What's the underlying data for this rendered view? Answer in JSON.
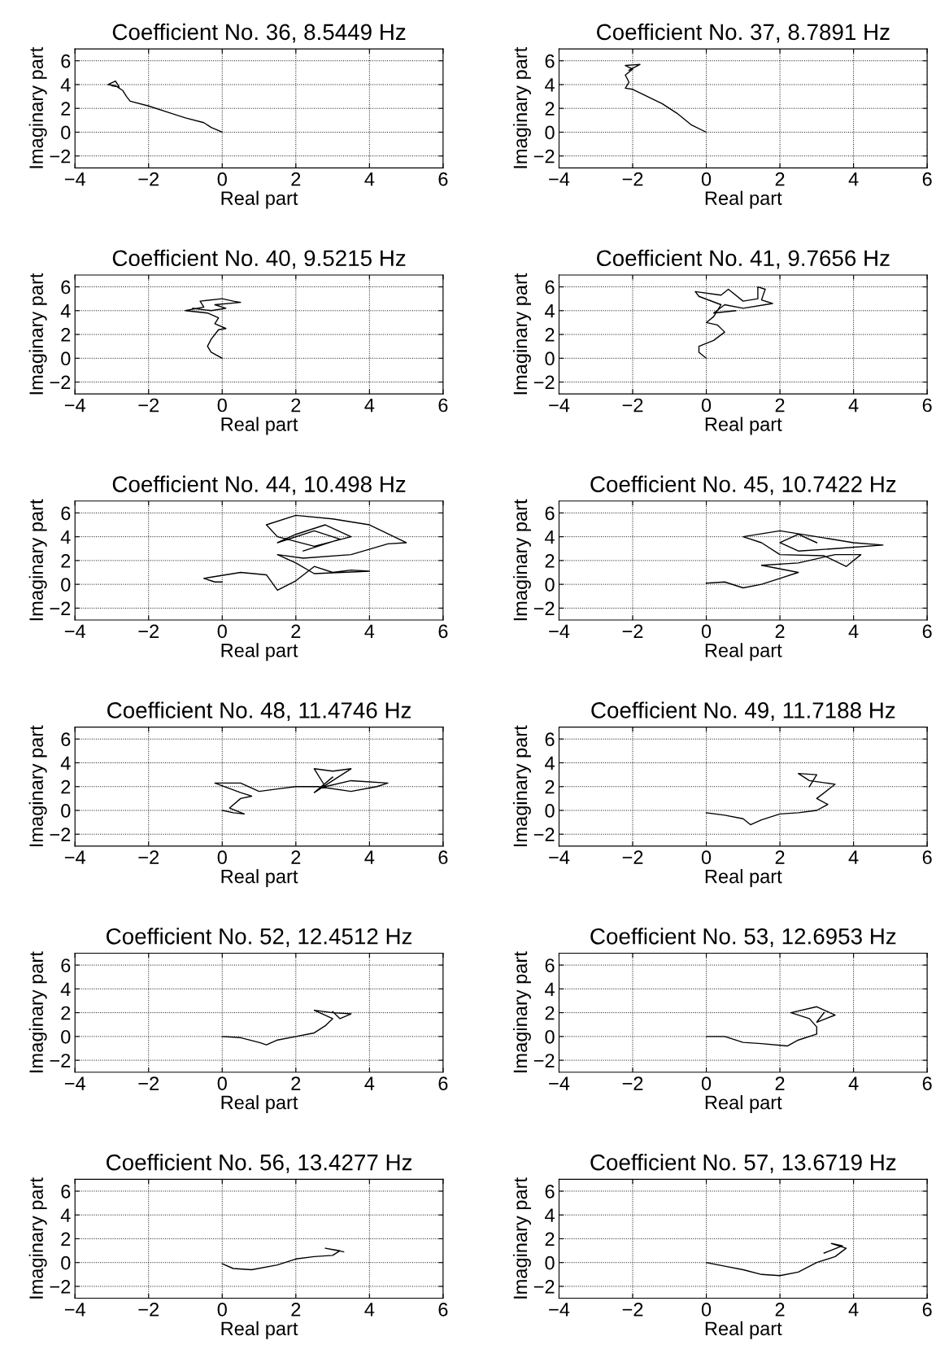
{
  "chart_data": [
    {
      "type": "line",
      "title": "Coefficient No. 36, 8.5449 Hz",
      "xlabel": "Real part",
      "ylabel": "Imaginary part",
      "xlim": [
        -4,
        6
      ],
      "ylim": [
        -3,
        7
      ],
      "xticks": [
        -4,
        -2,
        0,
        2,
        4,
        6
      ],
      "yticks": [
        -2,
        0,
        2,
        4,
        6
      ],
      "grid": true,
      "series": [
        {
          "color": "#000000",
          "x": [
            0,
            -0.3,
            -0.5,
            -1,
            -1.5,
            -2,
            -2.5,
            -2.6,
            -2.7,
            -2.9,
            -3.1,
            -2.9,
            -2.8,
            -3.0
          ],
          "values": [
            0,
            0.4,
            0.8,
            1.2,
            1.7,
            2.2,
            2.6,
            3.0,
            3.5,
            3.9,
            4.0,
            4.3,
            3.8,
            3.9
          ]
        }
      ]
    },
    {
      "type": "line",
      "title": "Coefficient No. 37, 8.7891 Hz",
      "xlabel": "Real part",
      "ylabel": "Imaginary part",
      "xlim": [
        -4,
        6
      ],
      "ylim": [
        -3,
        7
      ],
      "xticks": [
        -4,
        -2,
        0,
        2,
        4,
        6
      ],
      "yticks": [
        -2,
        0,
        2,
        4,
        6
      ],
      "grid": true,
      "series": [
        {
          "color": "#000000",
          "x": [
            0,
            -0.4,
            -0.8,
            -1.2,
            -1.6,
            -2.0,
            -2.2,
            -2.1,
            -2.2,
            -2.0,
            -2.2,
            -1.8,
            -2.1
          ],
          "values": [
            0,
            0.6,
            1.6,
            2.4,
            3.0,
            3.6,
            3.7,
            4.2,
            4.8,
            5.3,
            5.6,
            5.7,
            5.2
          ]
        }
      ]
    },
    {
      "type": "line",
      "title": "Coefficient No. 40, 9.5215 Hz",
      "xlabel": "Real part",
      "ylabel": "Imaginary part",
      "xlim": [
        -4,
        6
      ],
      "ylim": [
        -3,
        7
      ],
      "xticks": [
        -4,
        -2,
        0,
        2,
        4,
        6
      ],
      "yticks": [
        -2,
        0,
        2,
        4,
        6
      ],
      "grid": true,
      "series": [
        {
          "color": "#000000",
          "x": [
            0,
            -0.3,
            -0.4,
            -0.3,
            -0.1,
            0.1,
            -0.2,
            -0.1,
            -0.4,
            -1.0,
            -0.5,
            -0.6,
            0,
            0.3,
            0.5,
            -0.2,
            0.1,
            -0.3,
            -0.8
          ],
          "values": [
            0,
            0.5,
            1.0,
            1.6,
            2.4,
            2.5,
            2.9,
            3.4,
            3.8,
            4.0,
            4.3,
            4.8,
            5.0,
            4.8,
            4.7,
            4.5,
            4.2,
            4.0,
            4.2
          ]
        }
      ]
    },
    {
      "type": "line",
      "title": "Coefficient No. 41, 9.7656 Hz",
      "xlabel": "Real part",
      "ylabel": "Imaginary part",
      "xlim": [
        -4,
        6
      ],
      "ylim": [
        -3,
        7
      ],
      "xticks": [
        -4,
        -2,
        0,
        2,
        4,
        6
      ],
      "yticks": [
        -2,
        0,
        2,
        4,
        6
      ],
      "grid": true,
      "series": [
        {
          "color": "#000000",
          "x": [
            0,
            -0.2,
            -0.2,
            0.2,
            0.5,
            0.3,
            0,
            0.2,
            0.4,
            -0.2,
            -0.3,
            0.4,
            0.6,
            1.0,
            1.4,
            1.4,
            1.6,
            1.5,
            1.8,
            1.0,
            0.5,
            0.2,
            0.8
          ],
          "values": [
            0,
            0.5,
            1.0,
            1.5,
            2.2,
            2.8,
            3.0,
            3.5,
            4.5,
            5.2,
            5.6,
            5.3,
            5.8,
            4.8,
            5.0,
            6.0,
            5.8,
            4.9,
            4.6,
            4.2,
            4.5,
            3.8,
            4.0
          ]
        }
      ]
    },
    {
      "type": "line",
      "title": "Coefficient No. 44, 10.498 Hz",
      "xlabel": "Real part",
      "ylabel": "Imaginary part",
      "xlim": [
        -4,
        6
      ],
      "ylim": [
        -3,
        7
      ],
      "xticks": [
        -4,
        -2,
        0,
        2,
        4,
        6
      ],
      "yticks": [
        -2,
        0,
        2,
        4,
        6
      ],
      "grid": true,
      "series": [
        {
          "color": "#000000",
          "x": [
            0,
            -0.2,
            -0.5,
            0.5,
            1.2,
            1.5,
            2,
            2.5,
            3,
            3.5,
            4,
            2.5,
            2.0,
            1.5,
            2.2,
            3.5,
            4.5,
            5.0,
            4.0,
            3,
            2.0,
            1.2,
            1.5,
            2.5,
            3.5,
            2.8,
            2.0,
            1.5,
            2.5,
            3.2,
            2.2
          ],
          "values": [
            0.2,
            0.2,
            0.5,
            1.0,
            0.8,
            -0.5,
            0.3,
            1.5,
            1.0,
            1.2,
            1.1,
            0.9,
            1.8,
            2.5,
            2.2,
            2.5,
            3.4,
            3.5,
            5.0,
            5.5,
            5.8,
            5.0,
            4.0,
            3.2,
            4.0,
            5.0,
            4.2,
            3.5,
            4.5,
            3.8,
            2.8
          ]
        }
      ]
    },
    {
      "type": "line",
      "title": "Coefficient No. 45, 10.7422 Hz",
      "xlabel": "Real part",
      "ylabel": "Imaginary part",
      "xlim": [
        -4,
        6
      ],
      "ylim": [
        -3,
        7
      ],
      "xticks": [
        -4,
        -2,
        0,
        2,
        4,
        6
      ],
      "yticks": [
        -2,
        0,
        2,
        4,
        6
      ],
      "grid": true,
      "series": [
        {
          "color": "#000000",
          "x": [
            0,
            0.5,
            1.0,
            1.5,
            2.0,
            2.5,
            1.5,
            2.5,
            3.5,
            4.2,
            3.8,
            3.2,
            2.0,
            1.5,
            1.0,
            2.0,
            3.0,
            4.0,
            4.8,
            3.5,
            2.5,
            2.0,
            2.5,
            3.0
          ],
          "values": [
            0.1,
            0.2,
            -0.3,
            0,
            0.5,
            1.0,
            1.6,
            1.8,
            2.5,
            2.5,
            1.5,
            2.4,
            2.5,
            3.5,
            4.0,
            4.5,
            4.0,
            3.5,
            3.3,
            3.0,
            2.8,
            3.5,
            4.2,
            3.5
          ]
        }
      ]
    },
    {
      "type": "line",
      "title": "Coefficient No. 48, 11.4746 Hz",
      "xlabel": "Real part",
      "ylabel": "Imaginary part",
      "xlim": [
        -4,
        6
      ],
      "ylim": [
        -3,
        7
      ],
      "xticks": [
        -4,
        -2,
        0,
        2,
        4,
        6
      ],
      "yticks": [
        -2,
        0,
        2,
        4,
        6
      ],
      "grid": true,
      "series": [
        {
          "color": "#000000",
          "x": [
            0,
            0.3,
            0.6,
            0.2,
            0.5,
            0.8,
            0.5,
            -0.2,
            0.5,
            1.0,
            1.5,
            2.0,
            2.6,
            3.5,
            4.2,
            4.5,
            3.5,
            2.8,
            2.5,
            3.0,
            3.5,
            3.0,
            2.5,
            3.0
          ],
          "values": [
            0,
            -0.2,
            -0.3,
            0.2,
            1.0,
            1.2,
            1.5,
            2.3,
            2.3,
            1.6,
            1.8,
            2.0,
            2.0,
            1.6,
            2.0,
            2.3,
            2.5,
            2.0,
            3.5,
            3.3,
            3.5,
            2.5,
            1.5,
            2.8
          ]
        }
      ]
    },
    {
      "type": "line",
      "title": "Coefficient No. 49, 11.7188 Hz",
      "xlabel": "Real part",
      "ylabel": "Imaginary part",
      "xlim": [
        -4,
        6
      ],
      "ylim": [
        -3,
        7
      ],
      "xticks": [
        -4,
        -2,
        0,
        2,
        4,
        6
      ],
      "yticks": [
        -2,
        0,
        2,
        4,
        6
      ],
      "grid": true,
      "series": [
        {
          "color": "#000000",
          "x": [
            0,
            0.5,
            1.0,
            1.2,
            1.5,
            2.0,
            2.5,
            3.0,
            3.3,
            3.0,
            3.5,
            2.8,
            2.5,
            3.0,
            2.8
          ],
          "values": [
            -0.2,
            -0.4,
            -0.7,
            -1.2,
            -0.8,
            -0.3,
            -0.2,
            0,
            0.5,
            1.0,
            2.2,
            2.5,
            3.1,
            3.0,
            2.0
          ]
        }
      ]
    },
    {
      "type": "line",
      "title": "Coefficient No. 52, 12.4512 Hz",
      "xlabel": "Real part",
      "ylabel": "Imaginary part",
      "xlim": [
        -4,
        6
      ],
      "ylim": [
        -3,
        7
      ],
      "xticks": [
        -4,
        -2,
        0,
        2,
        4,
        6
      ],
      "yticks": [
        -2,
        0,
        2,
        4,
        6
      ],
      "grid": true,
      "series": [
        {
          "color": "#000000",
          "x": [
            0,
            0.5,
            1.0,
            1.2,
            1.5,
            2.0,
            2.5,
            2.8,
            3.0,
            2.5,
            3.0,
            3.5,
            3.2,
            3.0
          ],
          "values": [
            0,
            -0.1,
            -0.5,
            -0.7,
            -0.3,
            0,
            0.3,
            0.9,
            1.5,
            2.2,
            2.0,
            1.9,
            1.5,
            2.1
          ]
        }
      ]
    },
    {
      "type": "line",
      "title": "Coefficient No. 53, 12.6953 Hz",
      "xlabel": "Real part",
      "ylabel": "Imaginary part",
      "xlim": [
        -4,
        6
      ],
      "ylim": [
        -3,
        7
      ],
      "xticks": [
        -4,
        -2,
        0,
        2,
        4,
        6
      ],
      "yticks": [
        -2,
        0,
        2,
        4,
        6
      ],
      "grid": true,
      "series": [
        {
          "color": "#000000",
          "x": [
            0,
            0.5,
            1.0,
            1.5,
            2.2,
            2.5,
            3.0,
            3.0,
            2.8,
            2.3,
            3.0,
            3.5,
            3.0,
            3.2
          ],
          "values": [
            0,
            0,
            -0.5,
            -0.6,
            -0.8,
            -0.3,
            0.2,
            0.8,
            1.5,
            2.0,
            2.5,
            1.8,
            1.2,
            2.0
          ]
        }
      ]
    },
    {
      "type": "line",
      "title": "Coefficient No. 56, 13.4277 Hz",
      "xlabel": "Real part",
      "ylabel": "Imaginary part",
      "xlim": [
        -4,
        6
      ],
      "ylim": [
        -3,
        7
      ],
      "xticks": [
        -4,
        -2,
        0,
        2,
        4,
        6
      ],
      "yticks": [
        -2,
        0,
        2,
        4,
        6
      ],
      "grid": true,
      "series": [
        {
          "color": "#000000",
          "x": [
            0,
            0.3,
            0.8,
            1.5,
            2.0,
            2.5,
            3.0,
            3.2,
            2.8,
            3.3
          ],
          "values": [
            -0.1,
            -0.5,
            -0.6,
            -0.2,
            0.3,
            0.5,
            0.6,
            1.0,
            1.2,
            0.9
          ]
        }
      ]
    },
    {
      "type": "line",
      "title": "Coefficient No. 57, 13.6719 Hz",
      "xlabel": "Real part",
      "ylabel": "Imaginary part",
      "xlim": [
        -4,
        6
      ],
      "ylim": [
        -3,
        7
      ],
      "xticks": [
        -4,
        -2,
        0,
        2,
        4,
        6
      ],
      "yticks": [
        -2,
        0,
        2,
        4,
        6
      ],
      "grid": true,
      "series": [
        {
          "color": "#000000",
          "x": [
            0,
            0.5,
            1.0,
            1.5,
            2.0,
            2.5,
            3.0,
            3.5,
            3.8,
            3.4,
            3.7,
            3.2
          ],
          "values": [
            0,
            -0.3,
            -0.6,
            -1.0,
            -1.1,
            -0.8,
            0,
            0.5,
            1.2,
            1.6,
            1.4,
            0.8
          ]
        }
      ]
    }
  ]
}
